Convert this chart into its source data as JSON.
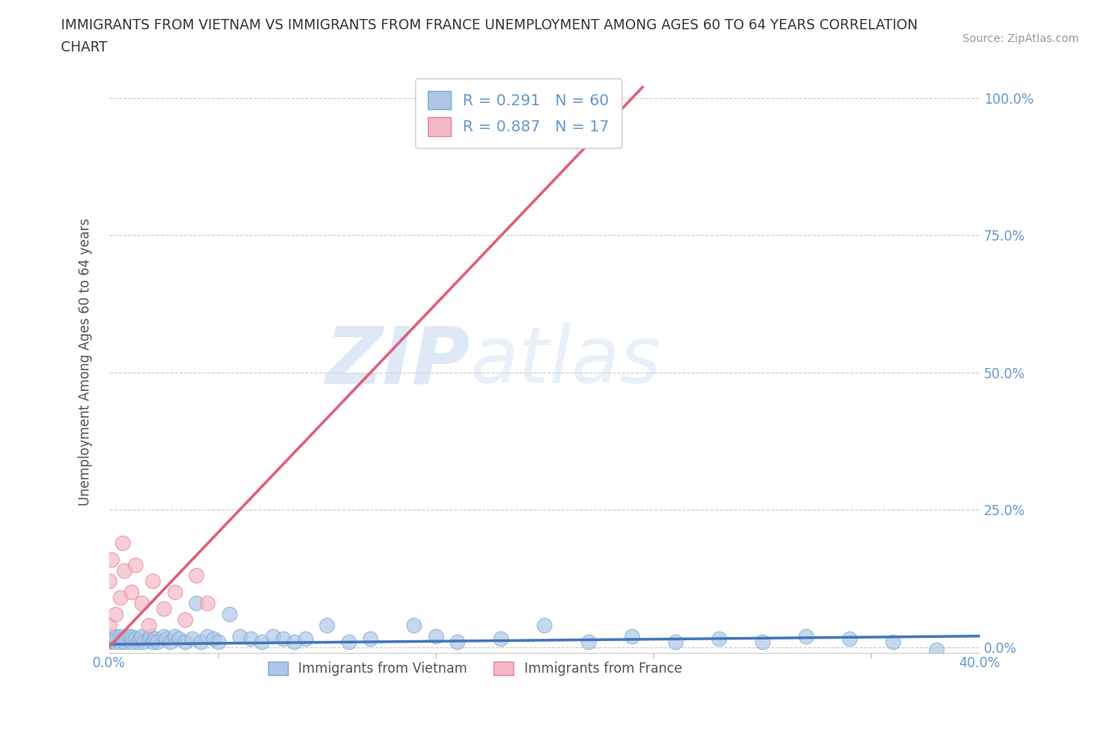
{
  "title_line1": "IMMIGRANTS FROM VIETNAM VS IMMIGRANTS FROM FRANCE UNEMPLOYMENT AMONG AGES 60 TO 64 YEARS CORRELATION",
  "title_line2": "CHART",
  "source": "Source: ZipAtlas.com",
  "ylabel": "Unemployment Among Ages 60 to 64 years",
  "xlim": [
    0.0,
    0.4
  ],
  "ylim": [
    -0.01,
    1.05
  ],
  "xticks": [
    0.0,
    0.1,
    0.2,
    0.3,
    0.4
  ],
  "xtick_labels_show": [
    "0.0%",
    "",
    "",
    "",
    "40.0%"
  ],
  "yticks": [
    0.0,
    0.25,
    0.5,
    0.75,
    1.0
  ],
  "ytick_labels": [
    "0.0%",
    "25.0%",
    "50.0%",
    "75.0%",
    "100.0%"
  ],
  "vietnam_color": "#aec6e8",
  "france_color": "#f5b8c8",
  "vietnam_edge_color": "#7aaad4",
  "france_edge_color": "#e8809a",
  "vietnam_line_color": "#4477bb",
  "france_line_color": "#e0607a",
  "vietnam_R": 0.291,
  "vietnam_N": 60,
  "france_R": 0.887,
  "france_N": 17,
  "legend_label_vietnam": "Immigrants from Vietnam",
  "legend_label_france": "Immigrants from France",
  "watermark_zip": "ZIP",
  "watermark_atlas": "atlas",
  "background_color": "#ffffff",
  "grid_color": "#cccccc",
  "tick_color": "#6699cc",
  "label_color": "#555555",
  "title_color": "#333333",
  "source_color": "#999999",
  "vietnam_scatter_x": [
    0.0,
    0.0,
    0.001,
    0.002,
    0.003,
    0.005,
    0.005,
    0.006,
    0.007,
    0.008,
    0.009,
    0.01,
    0.01,
    0.012,
    0.013,
    0.014,
    0.015,
    0.016,
    0.018,
    0.019,
    0.02,
    0.021,
    0.022,
    0.025,
    0.026,
    0.028,
    0.03,
    0.032,
    0.035,
    0.038,
    0.04,
    0.042,
    0.045,
    0.048,
    0.05,
    0.055,
    0.06,
    0.065,
    0.07,
    0.075,
    0.08,
    0.085,
    0.09,
    0.1,
    0.11,
    0.12,
    0.14,
    0.15,
    0.16,
    0.18,
    0.2,
    0.22,
    0.24,
    0.26,
    0.28,
    0.3,
    0.32,
    0.34,
    0.36,
    0.38
  ],
  "vietnam_scatter_y": [
    0.01,
    0.02,
    0.015,
    0.01,
    0.02,
    0.01,
    0.02,
    0.015,
    0.01,
    0.015,
    0.02,
    0.01,
    0.02,
    0.015,
    0.01,
    0.015,
    0.02,
    0.01,
    0.015,
    0.02,
    0.01,
    0.015,
    0.01,
    0.02,
    0.015,
    0.01,
    0.02,
    0.015,
    0.01,
    0.015,
    0.08,
    0.01,
    0.02,
    0.015,
    0.01,
    0.06,
    0.02,
    0.015,
    0.01,
    0.02,
    0.015,
    0.01,
    0.015,
    0.04,
    0.01,
    0.015,
    0.04,
    0.02,
    0.01,
    0.015,
    0.04,
    0.01,
    0.02,
    0.01,
    0.015,
    0.01,
    0.02,
    0.015,
    0.01,
    -0.005
  ],
  "france_scatter_x": [
    0.0,
    0.0,
    0.001,
    0.003,
    0.005,
    0.006,
    0.007,
    0.01,
    0.012,
    0.015,
    0.018,
    0.02,
    0.025,
    0.03,
    0.035,
    0.04,
    0.045
  ],
  "france_scatter_y": [
    0.04,
    0.12,
    0.16,
    0.06,
    0.09,
    0.19,
    0.14,
    0.1,
    0.15,
    0.08,
    0.04,
    0.12,
    0.07,
    0.1,
    0.05,
    0.13,
    0.08
  ],
  "vietnam_line_x": [
    0.0,
    0.4
  ],
  "vietnam_line_y": [
    0.005,
    0.02
  ],
  "france_line_x": [
    -0.005,
    0.245
  ],
  "france_line_y": [
    -0.02,
    1.02
  ]
}
